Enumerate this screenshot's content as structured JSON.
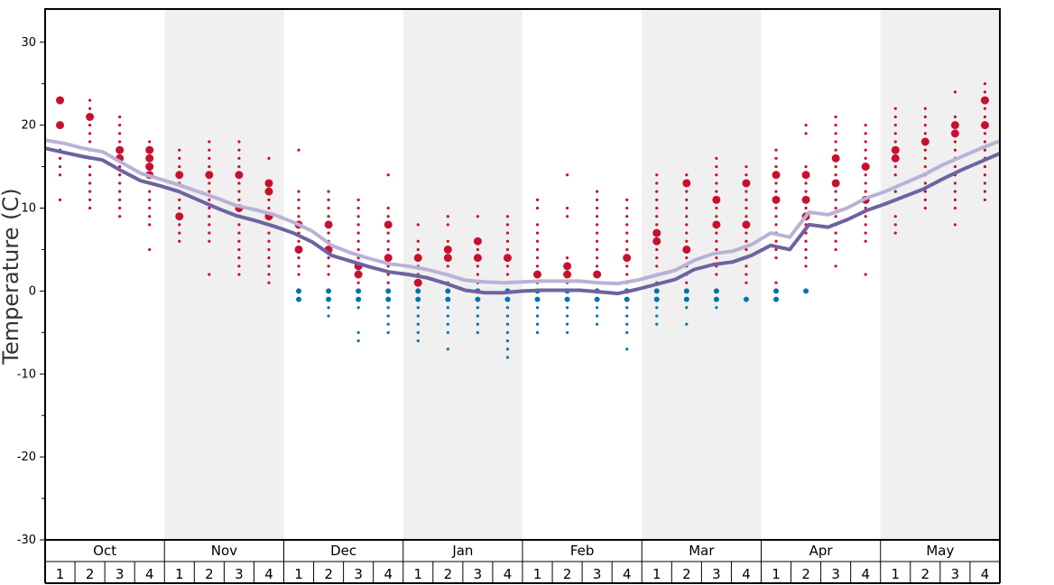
{
  "chart_data": {
    "type": "scatter",
    "title": "",
    "ylabel": "Temperature (C)",
    "ylim": [
      -30,
      34
    ],
    "yticks": [
      30,
      20,
      10,
      0,
      -10,
      -20,
      -30
    ],
    "months": [
      "Oct",
      "Nov",
      "Dec",
      "Jan",
      "Feb",
      "Mar",
      "Apr",
      "May"
    ],
    "weeks_per_month": [
      "1",
      "2",
      "3",
      "4"
    ],
    "shaded_months": [
      "Nov",
      "Jan",
      "Mar",
      "May"
    ],
    "colors": {
      "warm_dot": "#c8102e",
      "cold_dot": "#0072b2",
      "light_line": "#b9b2d6",
      "dark_line": "#6e63a0",
      "shade": "#f0f0f0"
    },
    "series": [
      {
        "values": [
          18.2,
          17.8,
          17.2,
          16.8,
          15.5,
          14.2,
          13.5,
          12.8,
          12.0,
          11.2,
          10.3,
          9.8,
          9.2,
          8.3,
          7.2,
          5.5,
          4.6,
          3.9,
          3.3,
          3.0,
          2.6,
          2.0,
          1.3,
          1.1,
          1.0,
          1.1,
          1.2,
          1.2,
          1.2,
          1.0,
          0.9,
          1.3,
          1.9,
          2.5,
          3.7,
          4.5,
          4.8,
          5.6,
          7.0,
          6.5,
          9.5,
          9.2,
          10.0,
          11.2,
          12.0,
          13.0,
          14.0,
          15.2,
          16.2,
          17.2,
          18.1
        ]
      },
      {
        "values": [
          17.2,
          16.7,
          16.2,
          15.8,
          14.5,
          13.3,
          12.7,
          12.0,
          11.0,
          10.0,
          9.1,
          8.5,
          7.8,
          7.0,
          5.9,
          4.3,
          3.6,
          2.9,
          2.3,
          2.0,
          1.6,
          0.9,
          0.1,
          -0.2,
          -0.2,
          0.0,
          0.1,
          0.1,
          0.1,
          -0.1,
          -0.3,
          0.2,
          0.8,
          1.4,
          2.6,
          3.2,
          3.5,
          4.3,
          5.5,
          5.0,
          8.0,
          7.7,
          8.6,
          9.7,
          10.5,
          11.4,
          12.3,
          13.5,
          14.6,
          15.6,
          16.6
        ]
      }
    ],
    "dot_columns": [
      {
        "t": [
          17,
          16,
          15,
          14,
          11
        ],
        "big": [
          20,
          23
        ],
        "small": []
      },
      {
        "t": [
          23,
          22,
          21,
          20,
          19,
          18,
          17,
          16,
          15,
          14,
          13,
          12,
          11,
          10
        ],
        "big": [
          21
        ],
        "small": []
      },
      {
        "t": [
          21,
          20,
          19,
          18,
          17,
          16,
          15,
          14,
          13,
          12,
          11,
          10,
          9
        ],
        "big": [
          17,
          16
        ],
        "small": []
      },
      {
        "t": [
          18,
          17,
          16,
          15,
          14,
          13,
          12,
          11,
          10,
          9,
          8,
          5
        ],
        "big": [
          17,
          16,
          15,
          14
        ],
        "small": []
      },
      {
        "t": [
          17,
          16,
          15,
          14,
          13,
          12,
          11,
          10,
          9,
          8,
          7,
          6
        ],
        "big": [
          14,
          9
        ],
        "small": []
      },
      {
        "t": [
          18,
          17,
          16,
          15,
          14,
          13,
          12,
          11,
          10,
          9,
          8,
          7,
          6,
          2
        ],
        "big": [
          14
        ],
        "small": []
      },
      {
        "t": [
          18,
          17,
          16,
          15,
          14,
          13,
          12,
          11,
          10,
          9,
          8,
          7,
          6,
          5,
          4,
          3,
          2
        ],
        "big": [
          14,
          10
        ],
        "small": []
      },
      {
        "t": [
          16,
          13,
          12,
          11,
          10,
          9,
          8,
          7,
          6,
          5,
          4,
          3,
          2,
          1
        ],
        "big": [
          13,
          12,
          9
        ],
        "small": []
      },
      {
        "t": [
          17,
          12,
          11,
          10,
          9,
          8,
          7,
          6,
          5,
          4,
          3,
          2
        ],
        "big": [
          8,
          5
        ],
        "small": [
          0,
          -1
        ]
      },
      {
        "t": [
          12,
          11,
          10,
          9,
          8,
          7,
          6,
          5,
          4,
          3,
          2
        ],
        "big": [
          5,
          8
        ],
        "small": [
          0,
          -1,
          -2,
          -3
        ]
      },
      {
        "t": [
          11,
          10,
          9,
          8,
          7,
          6,
          5,
          4,
          3,
          2,
          1
        ],
        "big": [
          3,
          2
        ],
        "small": [
          0,
          -1,
          -2,
          -5,
          -6
        ]
      },
      {
        "t": [
          14,
          10,
          9,
          8,
          7,
          6,
          5,
          4,
          3,
          2,
          1
        ],
        "big": [
          8,
          4
        ],
        "small": [
          0,
          -1,
          -2,
          -3,
          -4,
          -5
        ]
      },
      {
        "t": [
          8,
          6,
          5,
          4,
          3,
          2,
          1
        ],
        "big": [
          4,
          1
        ],
        "small": [
          0,
          -1,
          -2,
          -3,
          -4,
          -5,
          -6
        ]
      },
      {
        "t": [
          9,
          8,
          6,
          5,
          4,
          3,
          2,
          1
        ],
        "big": [
          5,
          4
        ],
        "small": [
          0,
          -1,
          -2,
          -3,
          -4,
          -5,
          -7
        ]
      },
      {
        "t": [
          9,
          6,
          5,
          4,
          3,
          2,
          1
        ],
        "big": [
          6,
          4
        ],
        "small": [
          0,
          -1,
          -2,
          -3,
          -4,
          -5
        ]
      },
      {
        "t": [
          9,
          8,
          7,
          6,
          5,
          4,
          3,
          2,
          1
        ],
        "big": [
          4
        ],
        "small": [
          0,
          -1,
          -2,
          -3,
          -4,
          -5,
          -6,
          -7,
          -8
        ]
      },
      {
        "t": [
          11,
          10,
          8,
          7,
          6,
          5,
          4,
          3,
          2,
          1
        ],
        "big": [
          2
        ],
        "small": [
          0,
          -1,
          -2,
          -3,
          -4,
          -5
        ]
      },
      {
        "t": [
          14,
          10,
          9,
          4,
          3,
          2,
          1
        ],
        "big": [
          3,
          2
        ],
        "small": [
          0,
          -1,
          -2,
          -3,
          -4,
          -5
        ]
      },
      {
        "t": [
          12,
          11,
          10,
          9,
          8,
          7,
          6,
          5,
          4,
          3,
          2,
          1
        ],
        "big": [
          2
        ],
        "small": [
          0,
          -1,
          -2,
          -3,
          -4
        ]
      },
      {
        "t": [
          11,
          10,
          9,
          8,
          7,
          6,
          5,
          4,
          3,
          2,
          1
        ],
        "big": [
          4
        ],
        "small": [
          0,
          -1,
          -2,
          -3,
          -4,
          -5,
          -7
        ]
      },
      {
        "t": [
          14,
          13,
          12,
          11,
          10,
          9,
          8,
          7,
          6,
          5,
          4,
          3,
          2,
          1
        ],
        "big": [
          7,
          6
        ],
        "small": [
          0,
          -1,
          -2,
          -3,
          -4
        ]
      },
      {
        "t": [
          14,
          13,
          12,
          11,
          10,
          9,
          8,
          7,
          6,
          5,
          4,
          3,
          2,
          1
        ],
        "big": [
          13,
          5
        ],
        "small": [
          0,
          -1,
          -2,
          -4
        ]
      },
      {
        "t": [
          16,
          15,
          14,
          13,
          12,
          11,
          10,
          9,
          8,
          7,
          6,
          5,
          4,
          3,
          2
        ],
        "big": [
          11,
          8
        ],
        "small": [
          0,
          -1,
          -2
        ]
      },
      {
        "t": [
          15,
          14,
          13,
          12,
          11,
          10,
          9,
          8,
          7,
          6,
          5,
          4,
          3,
          2,
          1
        ],
        "big": [
          13,
          8
        ],
        "small": [
          -1
        ]
      },
      {
        "t": [
          17,
          16,
          15,
          14,
          13,
          12,
          11,
          10,
          9,
          8,
          7,
          6,
          5,
          4,
          1
        ],
        "big": [
          14,
          11
        ],
        "small": [
          0,
          -1
        ]
      },
      {
        "t": [
          20,
          19,
          15,
          14,
          13,
          12,
          11,
          10,
          9,
          8,
          7,
          6,
          5,
          4,
          3
        ],
        "big": [
          14,
          11,
          9
        ],
        "small": [
          0
        ]
      },
      {
        "t": [
          21,
          20,
          19,
          18,
          17,
          16,
          15,
          14,
          13,
          12,
          11,
          10,
          9,
          8,
          7,
          6,
          5,
          3
        ],
        "big": [
          16,
          13
        ],
        "small": []
      },
      {
        "t": [
          20,
          19,
          18,
          17,
          16,
          15,
          14,
          13,
          12,
          11,
          10,
          9,
          8,
          7,
          6,
          2
        ],
        "big": [
          15,
          11
        ],
        "small": []
      },
      {
        "t": [
          22,
          21,
          20,
          19,
          18,
          17,
          15,
          14,
          12,
          9,
          8,
          7
        ],
        "big": [
          16,
          17
        ],
        "small": []
      },
      {
        "t": [
          22,
          21,
          20,
          19,
          17,
          16,
          15,
          14,
          13,
          12,
          11,
          10
        ],
        "big": [
          18
        ],
        "small": []
      },
      {
        "t": [
          24,
          21,
          20,
          19,
          18,
          17,
          16,
          15,
          14,
          13,
          12,
          11,
          10,
          8
        ],
        "big": [
          20,
          19
        ],
        "small": []
      },
      {
        "t": [
          25,
          24,
          23,
          22,
          21,
          20,
          19,
          18,
          17,
          16,
          15,
          14,
          13,
          12,
          11
        ],
        "big": [
          23,
          20
        ],
        "small": []
      }
    ]
  }
}
